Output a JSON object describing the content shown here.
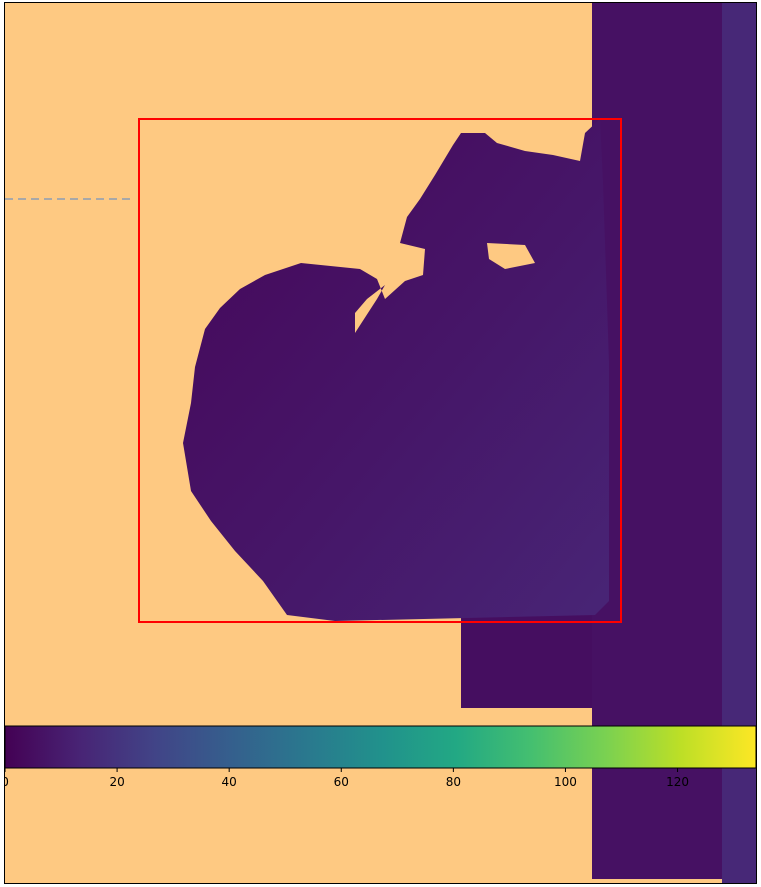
{
  "chart_data": {
    "type": "heatmap",
    "title": "",
    "xlabel": "",
    "ylabel": "",
    "colormap": "viridis",
    "background_color": "#fec982",
    "colorbar": {
      "min": 0,
      "max": 134,
      "ticks": [
        0,
        20,
        40,
        60,
        80,
        100,
        120
      ],
      "tick_labels": [
        "0",
        "20",
        "40",
        "60",
        "80",
        "100",
        "120"
      ],
      "orientation": "horizontal"
    },
    "annotations": {
      "bounding_box_color": "#ff0000",
      "dashed_line_color": "#a8a8a8"
    },
    "value_regions": {
      "right_strip": 6,
      "right_strip_edge": 15,
      "lower_block": 5,
      "object_dark": 2,
      "object_mid": 8,
      "object_light": 14
    }
  }
}
